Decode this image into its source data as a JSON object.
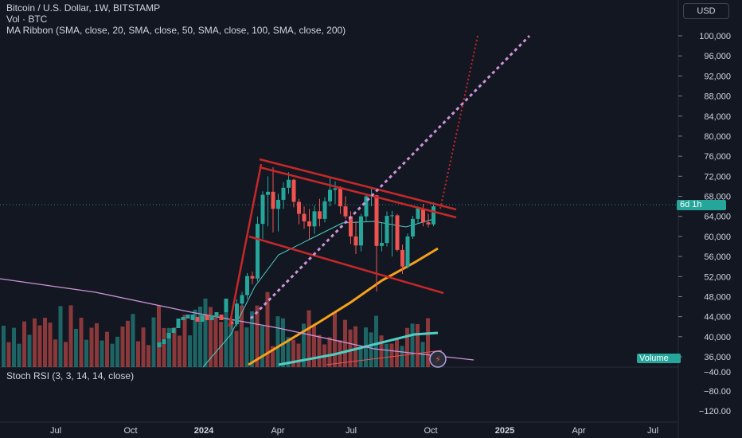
{
  "legend": {
    "symbol": "Bitcoin / U.S. Dollar, 1W, BITSTAMP",
    "volume": "Vol · BTC",
    "ma_ribbon": "MA Ribbon (SMA, close, 20, SMA, close, 50, SMA, close, 100, SMA, close, 200)",
    "stoch": "Stoch RSI (3, 3, 14, 14, close)"
  },
  "currency_button": "USD",
  "price_tag": "6d 1h",
  "volume_tag": "Volume",
  "colors": {
    "up": "#26a69a",
    "down": "#ef5350",
    "channel": "#c62828",
    "projection": "#ce93d8",
    "ma200": "#f7a11a",
    "ma_fast": "#4dd0c4"
  },
  "chart_data": {
    "type": "candlestick",
    "title": "Bitcoin / U.S. Dollar, 1W, BITSTAMP",
    "y_ticks": [
      "100,000",
      "96,000",
      "92,000",
      "88,000",
      "84,000",
      "80,000",
      "76,000",
      "72,000",
      "68,000",
      "64,000",
      "60,000",
      "56,000",
      "52,000",
      "48,000",
      "44,000",
      "40,000",
      "36,000"
    ],
    "stoch_ticks": [
      "−40.00",
      "−80.00",
      "−120.00"
    ],
    "x_ticks": [
      "Jul",
      "Oct",
      "2024",
      "Apr",
      "Jul",
      "Oct",
      "2025",
      "Apr",
      "Jul"
    ],
    "ylim": [
      34000,
      102000
    ],
    "candles": [
      {
        "o": 43000,
        "c": 42500,
        "h": 44000,
        "l": 41500
      },
      {
        "o": 42500,
        "c": 46600,
        "h": 47500,
        "l": 42000
      },
      {
        "o": 46600,
        "c": 48300,
        "h": 49000,
        "l": 46000
      },
      {
        "o": 48300,
        "c": 52100,
        "h": 52700,
        "l": 47500
      },
      {
        "o": 52100,
        "c": 51600,
        "h": 53000,
        "l": 50500
      },
      {
        "o": 51600,
        "c": 62500,
        "h": 64000,
        "l": 51000
      },
      {
        "o": 62500,
        "c": 68300,
        "h": 69000,
        "l": 59500
      },
      {
        "o": 68300,
        "c": 68900,
        "h": 72000,
        "l": 62000
      },
      {
        "o": 68900,
        "c": 65500,
        "h": 73800,
        "l": 60800
      },
      {
        "o": 65500,
        "c": 67300,
        "h": 68500,
        "l": 61000
      },
      {
        "o": 67300,
        "c": 69700,
        "h": 70800,
        "l": 65500
      },
      {
        "o": 69700,
        "c": 71300,
        "h": 72800,
        "l": 68500
      },
      {
        "o": 71300,
        "c": 66900,
        "h": 71500,
        "l": 65800
      },
      {
        "o": 66900,
        "c": 64500,
        "h": 67500,
        "l": 62400
      },
      {
        "o": 64500,
        "c": 63000,
        "h": 66000,
        "l": 61500
      },
      {
        "o": 63000,
        "c": 62000,
        "h": 65500,
        "l": 59500
      },
      {
        "o": 62000,
        "c": 65000,
        "h": 66200,
        "l": 60500
      },
      {
        "o": 65000,
        "c": 63500,
        "h": 67500,
        "l": 62000
      },
      {
        "o": 63500,
        "c": 67000,
        "h": 67800,
        "l": 62800
      },
      {
        "o": 67000,
        "c": 69300,
        "h": 71900,
        "l": 66000
      },
      {
        "o": 69300,
        "c": 69600,
        "h": 71000,
        "l": 66500
      },
      {
        "o": 69600,
        "c": 66000,
        "h": 70000,
        "l": 64500
      },
      {
        "o": 66000,
        "c": 64000,
        "h": 68000,
        "l": 63500
      },
      {
        "o": 64000,
        "c": 60000,
        "h": 65000,
        "l": 58500
      },
      {
        "o": 60000,
        "c": 58200,
        "h": 63000,
        "l": 56500
      },
      {
        "o": 58200,
        "c": 64000,
        "h": 64500,
        "l": 57000
      },
      {
        "o": 64000,
        "c": 68000,
        "h": 68500,
        "l": 63000
      },
      {
        "o": 68000,
        "c": 68200,
        "h": 69900,
        "l": 66000
      },
      {
        "o": 68200,
        "c": 58100,
        "h": 68300,
        "l": 49000
      },
      {
        "o": 58100,
        "c": 58700,
        "h": 62700,
        "l": 57000
      },
      {
        "o": 58700,
        "c": 64100,
        "h": 65000,
        "l": 58000
      },
      {
        "o": 64100,
        "c": 64200,
        "h": 65100,
        "l": 56000
      },
      {
        "o": 64200,
        "c": 57300,
        "h": 64500,
        "l": 57000
      },
      {
        "o": 57300,
        "c": 54000,
        "h": 58400,
        "l": 52500
      },
      {
        "o": 54000,
        "c": 60000,
        "h": 60600,
        "l": 53600
      },
      {
        "o": 60000,
        "c": 63500,
        "h": 64100,
        "l": 59500
      },
      {
        "o": 63500,
        "c": 65600,
        "h": 66000,
        "l": 62500
      },
      {
        "o": 65600,
        "c": 62800,
        "h": 66500,
        "l": 62000
      },
      {
        "o": 62800,
        "c": 62400,
        "h": 64500,
        "l": 61800
      },
      {
        "o": 62400,
        "c": 66000,
        "h": 66800,
        "l": 62000
      }
    ]
  }
}
